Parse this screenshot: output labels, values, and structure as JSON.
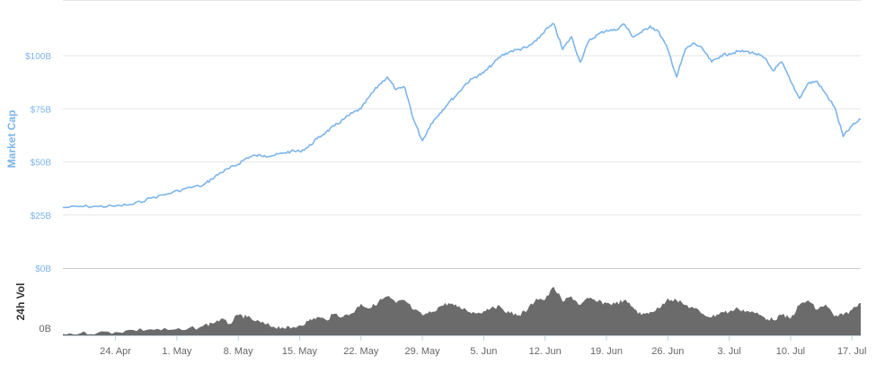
{
  "colors": {
    "market_cap_line": "#7cb5ec",
    "volume_area": "#6b6b6b",
    "grid": "#e6e6e6",
    "axis_text": "#666666",
    "volume_title": "#333333"
  },
  "chart_data": [
    {
      "type": "line",
      "ylabel": "Market Cap",
      "ylim": [
        0,
        125
      ],
      "yunit": "B USD",
      "y_ticks": [
        {
          "value": 0,
          "label": "$0B"
        },
        {
          "value": 25,
          "label": "$25B"
        },
        {
          "value": 50,
          "label": "$50B"
        },
        {
          "value": 75,
          "label": "$75B"
        },
        {
          "value": 100,
          "label": "$100B"
        }
      ],
      "grid": true,
      "series": [
        {
          "points": [
            [
              "Apr 18",
              28.5
            ],
            [
              "Apr 20",
              29
            ],
            [
              "Apr 22",
              29
            ],
            [
              "Apr 24",
              29.2
            ],
            [
              "Apr 26",
              30
            ],
            [
              "Apr 28",
              33
            ],
            [
              "Apr 30",
              35
            ],
            [
              "May 2",
              37.5
            ],
            [
              "May 4",
              39
            ],
            [
              "May 5",
              42
            ],
            [
              "May 6",
              45
            ],
            [
              "May 7",
              47
            ],
            [
              "May 8",
              49
            ],
            [
              "May 9",
              52
            ],
            [
              "May 10",
              53
            ],
            [
              "May 11",
              53
            ],
            [
              "May 12",
              53
            ],
            [
              "May 13",
              54
            ],
            [
              "May 14",
              55
            ],
            [
              "May 15",
              55
            ],
            [
              "May 16",
              57
            ],
            [
              "May 17",
              61
            ],
            [
              "May 18",
              64
            ],
            [
              "May 19",
              67
            ],
            [
              "May 20",
              70
            ],
            [
              "May 21",
              73
            ],
            [
              "May 22",
              75
            ],
            [
              "May 23",
              81
            ],
            [
              "May 24",
              86
            ],
            [
              "May 25",
              90
            ],
            [
              "May 26",
              84
            ],
            [
              "May 27",
              85
            ],
            [
              "May 28",
              70
            ],
            [
              "May 29",
              60
            ],
            [
              "May 30",
              68
            ],
            [
              "May 31",
              73
            ],
            [
              "Jun 1",
              78
            ],
            [
              "Jun 2",
              82
            ],
            [
              "Jun 3",
              87
            ],
            [
              "Jun 4",
              90
            ],
            [
              "Jun 5",
              92
            ],
            [
              "Jun 6",
              96
            ],
            [
              "Jun 7",
              100
            ],
            [
              "Jun 8",
              102
            ],
            [
              "Jun 9",
              103
            ],
            [
              "Jun 10",
              104
            ],
            [
              "Jun 11",
              107
            ],
            [
              "Jun 12",
              112
            ],
            [
              "Jun 13",
              115
            ],
            [
              "Jun 14",
              103
            ],
            [
              "Jun 15",
              109
            ],
            [
              "Jun 16",
              97
            ],
            [
              "Jun 17",
              107
            ],
            [
              "Jun 18",
              110
            ],
            [
              "Jun 19",
              112
            ],
            [
              "Jun 20",
              112
            ],
            [
              "Jun 21",
              115
            ],
            [
              "Jun 22",
              109
            ],
            [
              "Jun 23",
              111
            ],
            [
              "Jun 24",
              114
            ],
            [
              "Jun 25",
              111
            ],
            [
              "Jun 26",
              103
            ],
            [
              "Jun 27",
              90
            ],
            [
              "Jun 28",
              103
            ],
            [
              "Jun 29",
              106
            ],
            [
              "Jun 30",
              103
            ],
            [
              "Jul 1",
              97
            ],
            [
              "Jul 2",
              100
            ],
            [
              "Jul 3",
              101
            ],
            [
              "Jul 4",
              102
            ],
            [
              "Jul 5",
              102
            ],
            [
              "Jul 6",
              101
            ],
            [
              "Jul 7",
              99
            ],
            [
              "Jul 8",
              93
            ],
            [
              "Jul 9",
              97
            ],
            [
              "Jul 10",
              88
            ],
            [
              "Jul 11",
              80
            ],
            [
              "Jul 12",
              87
            ],
            [
              "Jul 13",
              88
            ],
            [
              "Jul 14",
              82
            ],
            [
              "Jul 15",
              76
            ],
            [
              "Jul 16",
              62
            ],
            [
              "Jul 17",
              67
            ],
            [
              "Jul 18",
              70
            ]
          ]
        }
      ]
    },
    {
      "type": "area",
      "ylabel": "24h Vol",
      "y_ticks": [
        {
          "value": 0,
          "label": "0B"
        }
      ],
      "grid": false,
      "series": [
        {
          "points": [
            [
              "Apr 18",
              0.02
            ],
            [
              "Apr 20",
              0.03
            ],
            [
              "Apr 22",
              0.04
            ],
            [
              "Apr 24",
              0.05
            ],
            [
              "Apr 26",
              0.08
            ],
            [
              "Apr 28",
              0.09
            ],
            [
              "Apr 30",
              0.08
            ],
            [
              "May 2",
              0.08
            ],
            [
              "May 4",
              0.14
            ],
            [
              "May 5",
              0.18
            ],
            [
              "May 6",
              0.24
            ],
            [
              "May 7",
              0.17
            ],
            [
              "May 8",
              0.3
            ],
            [
              "May 9",
              0.27
            ],
            [
              "May 10",
              0.21
            ],
            [
              "May 11",
              0.17
            ],
            [
              "May 12",
              0.13
            ],
            [
              "May 13",
              0.12
            ],
            [
              "May 14",
              0.1
            ],
            [
              "May 15",
              0.15
            ],
            [
              "May 16",
              0.21
            ],
            [
              "May 17",
              0.27
            ],
            [
              "May 18",
              0.23
            ],
            [
              "May 19",
              0.32
            ],
            [
              "May 20",
              0.28
            ],
            [
              "May 21",
              0.33
            ],
            [
              "May 22",
              0.47
            ],
            [
              "May 23",
              0.4
            ],
            [
              "May 24",
              0.5
            ],
            [
              "May 25",
              0.58
            ],
            [
              "May 26",
              0.48
            ],
            [
              "May 27",
              0.52
            ],
            [
              "May 28",
              0.38
            ],
            [
              "May 29",
              0.3
            ],
            [
              "May 30",
              0.34
            ],
            [
              "May 31",
              0.43
            ],
            [
              "Jun 1",
              0.48
            ],
            [
              "Jun 2",
              0.42
            ],
            [
              "Jun 3",
              0.38
            ],
            [
              "Jun 4",
              0.33
            ],
            [
              "Jun 5",
              0.36
            ],
            [
              "Jun 6",
              0.43
            ],
            [
              "Jun 7",
              0.41
            ],
            [
              "Jun 8",
              0.33
            ],
            [
              "Jun 9",
              0.3
            ],
            [
              "Jun 10",
              0.38
            ],
            [
              "Jun 11",
              0.55
            ],
            [
              "Jun 12",
              0.53
            ],
            [
              "Jun 13",
              0.72
            ],
            [
              "Jun 14",
              0.5
            ],
            [
              "Jun 15",
              0.58
            ],
            [
              "Jun 16",
              0.45
            ],
            [
              "Jun 17",
              0.55
            ],
            [
              "Jun 18",
              0.5
            ],
            [
              "Jun 19",
              0.48
            ],
            [
              "Jun 20",
              0.47
            ],
            [
              "Jun 21",
              0.52
            ],
            [
              "Jun 22",
              0.42
            ],
            [
              "Jun 23",
              0.3
            ],
            [
              "Jun 24",
              0.35
            ],
            [
              "Jun 25",
              0.4
            ],
            [
              "Jun 26",
              0.55
            ],
            [
              "Jun 27",
              0.52
            ],
            [
              "Jun 28",
              0.45
            ],
            [
              "Jun 29",
              0.4
            ],
            [
              "Jun 30",
              0.32
            ],
            [
              "Jul 1",
              0.27
            ],
            [
              "Jul 2",
              0.34
            ],
            [
              "Jul 3",
              0.35
            ],
            [
              "Jul 4",
              0.4
            ],
            [
              "Jul 5",
              0.36
            ],
            [
              "Jul 6",
              0.33
            ],
            [
              "Jul 7",
              0.27
            ],
            [
              "Jul 8",
              0.23
            ],
            [
              "Jul 9",
              0.3
            ],
            [
              "Jul 10",
              0.25
            ],
            [
              "Jul 11",
              0.45
            ],
            [
              "Jul 12",
              0.52
            ],
            [
              "Jul 13",
              0.38
            ],
            [
              "Jul 14",
              0.46
            ],
            [
              "Jul 15",
              0.28
            ],
            [
              "Jul 16",
              0.3
            ],
            [
              "Jul 17",
              0.38
            ],
            [
              "Jul 18",
              0.48
            ]
          ]
        }
      ]
    }
  ],
  "x_axis": {
    "range": [
      "Apr 18",
      "Jul 18"
    ],
    "ticks": [
      {
        "date": "Apr 24",
        "label": "24. Apr"
      },
      {
        "date": "May 1",
        "label": "1. May"
      },
      {
        "date": "May 8",
        "label": "8. May"
      },
      {
        "date": "May 15",
        "label": "15. May"
      },
      {
        "date": "May 22",
        "label": "22. May"
      },
      {
        "date": "May 29",
        "label": "29. May"
      },
      {
        "date": "Jun 5",
        "label": "5. Jun"
      },
      {
        "date": "Jun 12",
        "label": "12. Jun"
      },
      {
        "date": "Jun 19",
        "label": "19. Jun"
      },
      {
        "date": "Jun 26",
        "label": "26. Jun"
      },
      {
        "date": "Jul 3",
        "label": "3. Jul"
      },
      {
        "date": "Jul 10",
        "label": "10. Jul"
      },
      {
        "date": "Jul 17",
        "label": "17. Jul"
      }
    ]
  }
}
